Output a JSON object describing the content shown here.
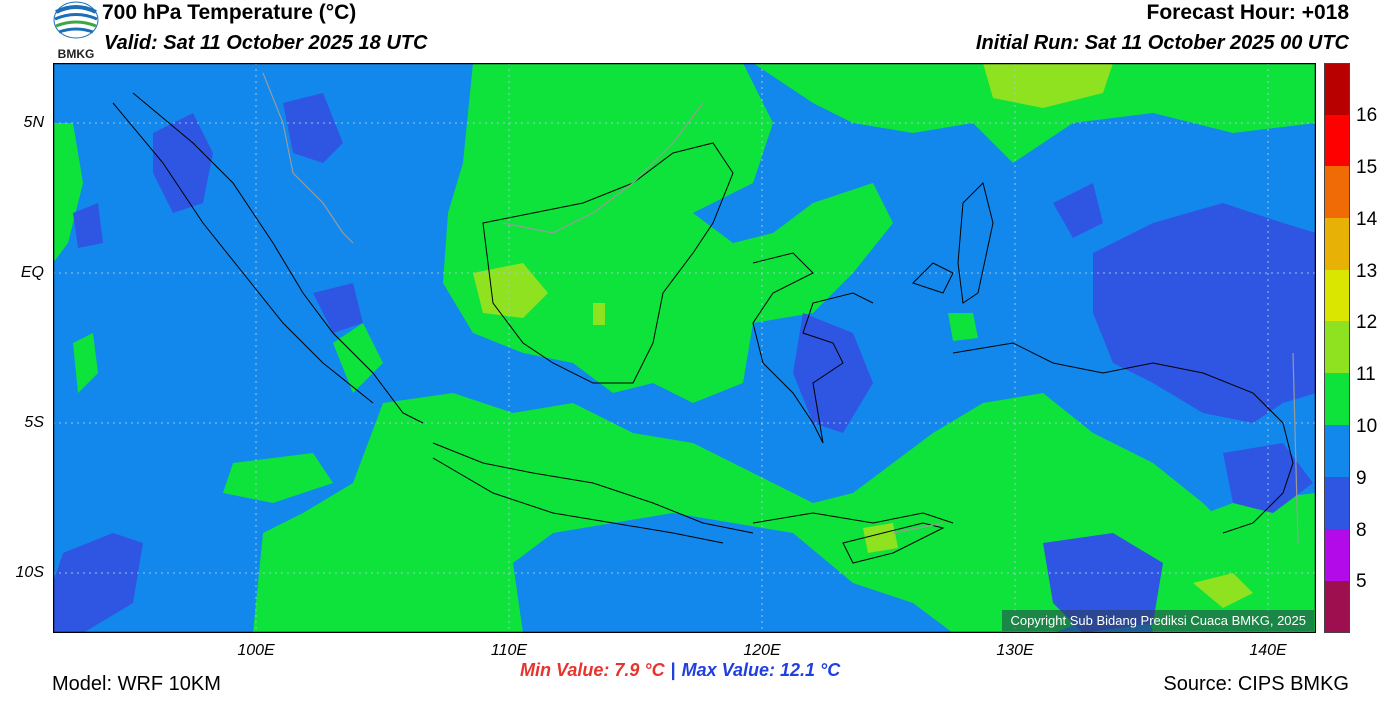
{
  "header": {
    "title": "700 hPa Temperature (°C)",
    "valid": "Valid: Sat 11 October 2025 18 UTC",
    "forecast_hour": "Forecast Hour: +018",
    "initial_run": "Initial Run: Sat 11 October 2025 00 UTC",
    "logo_text": "BMKG"
  },
  "map": {
    "lat_labels": [
      "5N",
      "EQ",
      "5S",
      "10S"
    ],
    "lon_labels": [
      "100E",
      "110E",
      "120E",
      "130E",
      "140E"
    ],
    "copyright": "Copyright Sub Bidang Prediksi Cuaca BMKG, 2025",
    "colors": {
      "c8_9": "#2f55e3",
      "c9_10": "#1388ec",
      "c10_11": "#0de33a",
      "c11_12": "#8fe220",
      "background": "#1388ec"
    }
  },
  "colorbar": {
    "labels": [
      "16",
      "15",
      "14",
      "13",
      "12",
      "11",
      "10",
      "9",
      "8",
      "5"
    ],
    "colors": [
      "#b80000",
      "#ff0000",
      "#f06a06",
      "#e8b106",
      "#dbe600",
      "#8fe220",
      "#0de33a",
      "#1388ec",
      "#2f55e3",
      "#b20ae8",
      "#9d0f4f"
    ]
  },
  "footer": {
    "model": "Model: WRF 10KM",
    "source": "Source: CIPS BMKG",
    "min_value": "Min Value: 7.9 °C",
    "separator": "|",
    "max_value": "Max Value: 12.1 °C"
  }
}
